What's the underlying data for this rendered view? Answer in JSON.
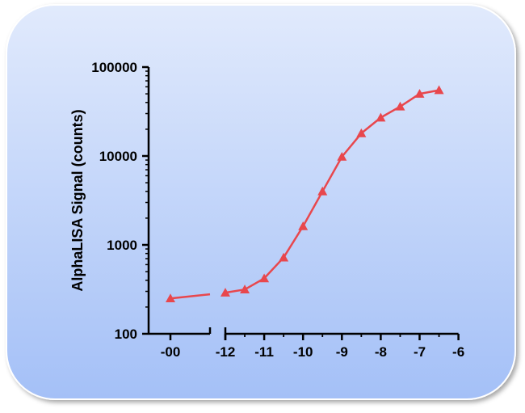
{
  "chart_data": {
    "type": "line",
    "title": "",
    "xlabel": "",
    "ylabel": "AlphaLISA Signal (counts)",
    "y_scale": "log",
    "ylim": [
      100,
      100000
    ],
    "y_ticks": [
      100,
      1000,
      10000,
      100000
    ],
    "y_tick_labels": [
      "100",
      "1000",
      "10000",
      "100000"
    ],
    "x_scale": "log concentration with broken axis",
    "x_break_segment": {
      "tick": "-00",
      "value": null
    },
    "xlim": [
      -12.5,
      -6
    ],
    "x_ticks": [
      -12,
      -11,
      -10,
      -9,
      -8,
      -7,
      -6
    ],
    "x_tick_labels": [
      "-12",
      "-11",
      "-10",
      "-9",
      "-8",
      "-7",
      "-6"
    ],
    "x_minor_ticks": [
      -11.5,
      -10.5,
      -9.5,
      -8.5,
      -7.5,
      -6.5
    ],
    "series": [
      {
        "name": "",
        "color": "#e8474d",
        "marker": "triangle",
        "zero_point": {
          "x_label": "-00",
          "y": 250
        },
        "x": [
          -12,
          -11.5,
          -11,
          -10.5,
          -10,
          -9.5,
          -9,
          -8.5,
          -8,
          -7.5,
          -7,
          -6.5
        ],
        "y": [
          290,
          315,
          420,
          720,
          1620,
          4000,
          9800,
          18000,
          27000,
          36000,
          50000,
          55000
        ]
      }
    ],
    "grid": false,
    "legend": "none",
    "background_gradient": [
      "#e1eafc",
      "#a4c0f7"
    ]
  }
}
